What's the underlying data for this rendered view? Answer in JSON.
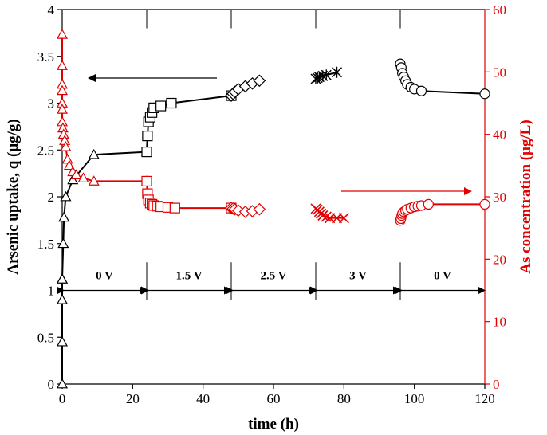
{
  "chart_data": {
    "type": "scatter",
    "x_axis": {
      "label": "time (h)",
      "range": [
        0,
        120
      ],
      "ticks": [
        0,
        20,
        40,
        60,
        80,
        100,
        120
      ]
    },
    "y_left": {
      "label": "Arsenic uptake, q (μg/g)",
      "range": [
        0,
        4
      ],
      "ticks": [
        0,
        0.5,
        1,
        1.5,
        2,
        2.5,
        3,
        3.5,
        4
      ],
      "color": "#000000"
    },
    "y_right": {
      "label": "As concentration (μg/L)",
      "range": [
        0,
        60
      ],
      "ticks": [
        0,
        10,
        20,
        30,
        40,
        50,
        60
      ],
      "color": "#e00000"
    },
    "grid": false,
    "phases": [
      {
        "label": "0 V",
        "start": 0,
        "end": 24
      },
      {
        "label": "1.5 V",
        "start": 24,
        "end": 48
      },
      {
        "label": "2.5 V",
        "start": 48,
        "end": 72
      },
      {
        "label": "3 V",
        "start": 72,
        "end": 96
      },
      {
        "label": "0 V",
        "start": 96,
        "end": 120
      }
    ],
    "phase_dividers": [
      24,
      48,
      72,
      96
    ],
    "series": [
      {
        "axis": "left",
        "marker": "triangle",
        "color": "#000000",
        "x": [
          0,
          0,
          0,
          0,
          0,
          0.3,
          0.5,
          1,
          3,
          9,
          24
        ],
        "y": [
          0,
          0.45,
          0.9,
          1.12,
          1.12,
          1.5,
          1.78,
          2.0,
          2.18,
          2.45,
          2.48
        ]
      },
      {
        "axis": "left",
        "marker": "square",
        "color": "#000000",
        "x": [
          24,
          24.2,
          24.5,
          25,
          25.5,
          26,
          28,
          31,
          48
        ],
        "y": [
          2.48,
          2.65,
          2.8,
          2.85,
          2.9,
          2.95,
          2.97,
          3.0,
          3.08
        ]
      },
      {
        "axis": "left",
        "marker": "diamond",
        "color": "#000000",
        "x": [
          48,
          48.5,
          49,
          50,
          52,
          54,
          56
        ],
        "y": [
          3.08,
          3.1,
          3.12,
          3.15,
          3.18,
          3.21,
          3.24
        ]
      },
      {
        "axis": "left",
        "marker": "star",
        "color": "#000000",
        "x": [
          72,
          72.5,
          73,
          74,
          75,
          78
        ],
        "y": [
          3.26,
          3.27,
          3.28,
          3.29,
          3.3,
          3.33
        ]
      },
      {
        "axis": "left",
        "marker": "circle",
        "color": "#000000",
        "x": [
          96,
          96.3,
          96.6,
          97,
          97.5,
          98,
          99,
          100,
          102,
          120
        ],
        "y": [
          3.42,
          3.38,
          3.32,
          3.28,
          3.24,
          3.2,
          3.17,
          3.15,
          3.13,
          3.1
        ]
      },
      {
        "axis": "right",
        "marker": "triangle",
        "color": "#e00000",
        "x": [
          0,
          0,
          0,
          0,
          0,
          0,
          0,
          0.2,
          0.4,
          0.7,
          1,
          1.5,
          2,
          3,
          4,
          6,
          9,
          24
        ],
        "y": [
          56,
          51,
          48,
          47,
          45,
          44,
          42,
          41,
          40,
          39,
          38,
          36,
          35,
          34,
          33.5,
          33,
          32.5,
          32.5
        ]
      },
      {
        "axis": "right",
        "marker": "square",
        "color": "#e00000",
        "x": [
          24,
          24.2,
          24.5,
          25,
          25.5,
          26,
          27,
          28,
          30,
          32,
          48
        ],
        "y": [
          32.5,
          30.5,
          29.5,
          29,
          28.8,
          28.6,
          28.5,
          28.4,
          28.3,
          28.2,
          28.2
        ]
      },
      {
        "axis": "right",
        "marker": "diamond",
        "color": "#e00000",
        "x": [
          48,
          48.5,
          49,
          50,
          52,
          54,
          56
        ],
        "y": [
          28.2,
          28.1,
          28.0,
          27.8,
          27.6,
          27.7,
          28
        ]
      },
      {
        "axis": "right",
        "marker": "x",
        "color": "#e00000",
        "x": [
          72,
          72.5,
          73,
          73.5,
          74,
          75,
          76,
          78,
          80
        ],
        "y": [
          28.1,
          27.9,
          27.6,
          27.3,
          27.0,
          26.8,
          26.6,
          26.6,
          26.6
        ]
      },
      {
        "axis": "right",
        "marker": "circle",
        "color": "#e00000",
        "x": [
          96,
          96.2,
          96.4,
          96.6,
          97,
          97.5,
          98,
          99,
          100,
          101,
          102,
          104,
          120
        ],
        "y": [
          26.2,
          26.5,
          27,
          27.3,
          27.6,
          27.8,
          28,
          28.2,
          28.4,
          28.5,
          28.6,
          28.8,
          28.8
        ]
      }
    ]
  }
}
